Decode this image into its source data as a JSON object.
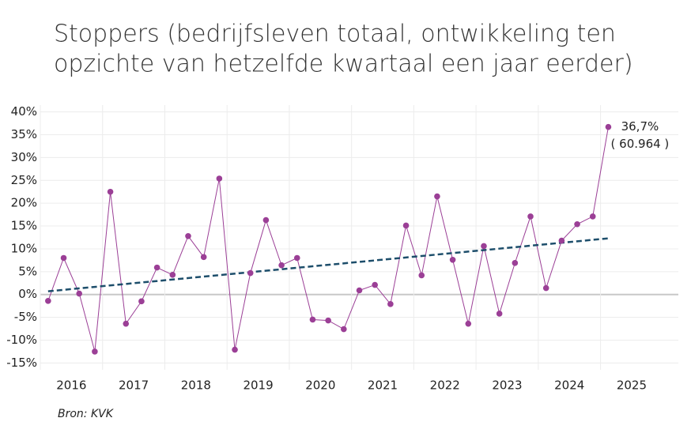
{
  "chart_data": {
    "type": "line",
    "title": [
      "Stoppers (bedrijfsleven totaal, ontwikkeling ten",
      "opzichte van hetzelfde kwartaal een jaar eerder)"
    ],
    "source": "Bron: KVK",
    "x": [
      2016.125,
      2016.375,
      2016.625,
      2016.875,
      2017.125,
      2017.375,
      2017.625,
      2017.875,
      2018.125,
      2018.375,
      2018.625,
      2018.875,
      2019.125,
      2019.375,
      2019.625,
      2019.875,
      2020.125,
      2020.375,
      2020.625,
      2020.875,
      2021.125,
      2021.375,
      2021.625,
      2021.875,
      2022.125,
      2022.375,
      2022.625,
      2022.875,
      2023.125,
      2023.375,
      2023.625,
      2023.875,
      2024.125,
      2024.375,
      2024.625,
      2024.875,
      2025.125
    ],
    "series": [
      {
        "color": "#9b3f96",
        "values": [
          -1.4,
          8.0,
          0.2,
          -12.5,
          22.5,
          -6.4,
          -1.5,
          5.9,
          4.3,
          12.8,
          8.2,
          25.4,
          -12.1,
          4.7,
          16.3,
          6.4,
          8.0,
          -5.5,
          -5.7,
          -7.6,
          0.9,
          2.1,
          -2.1,
          15.1,
          4.2,
          21.5,
          7.6,
          -6.4,
          10.6,
          -4.2,
          6.9,
          17.1,
          1.4,
          11.8,
          15.4,
          17.1,
          36.7
        ]
      }
    ],
    "trendline": {
      "color": "#1d4e6b",
      "x": [
        2016.125,
        2025.125
      ],
      "values": [
        0.7,
        12.3
      ]
    },
    "annotation": {
      "x": 2025.125,
      "value": 36.7,
      "lines": [
        "36,7%",
        "( 60.964 )"
      ]
    },
    "xlim": [
      2016,
      2026.25
    ],
    "xticks": [
      {
        "value": 2016,
        "label": "2016"
      },
      {
        "value": 2017,
        "label": "2017"
      },
      {
        "value": 2018,
        "label": "2018"
      },
      {
        "value": 2019,
        "label": "2019"
      },
      {
        "value": 2020,
        "label": "2020"
      },
      {
        "value": 2021,
        "label": "2021"
      },
      {
        "value": 2022,
        "label": "2022"
      },
      {
        "value": 2023,
        "label": "2023"
      },
      {
        "value": 2024,
        "label": "2024"
      },
      {
        "value": 2025,
        "label": "2025"
      }
    ],
    "ylim": [
      -16.5,
      41.5
    ],
    "yticks": [
      {
        "value": -15,
        "label": "-15%"
      },
      {
        "value": -10,
        "label": "-10%"
      },
      {
        "value": -5,
        "label": "-5%"
      },
      {
        "value": 0,
        "label": "0%"
      },
      {
        "value": 5,
        "label": "5%"
      },
      {
        "value": 10,
        "label": "10%"
      },
      {
        "value": 15,
        "label": "15%"
      },
      {
        "value": 20,
        "label": "20%"
      },
      {
        "value": 25,
        "label": "25%"
      },
      {
        "value": 30,
        "label": "30%"
      },
      {
        "value": 35,
        "label": "35%"
      },
      {
        "value": 40,
        "label": "40%"
      }
    ],
    "grid": true
  }
}
